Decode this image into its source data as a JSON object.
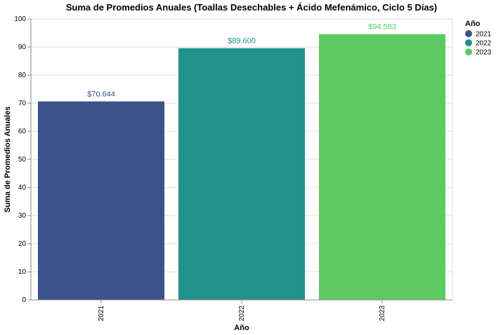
{
  "chart_data": {
    "type": "bar",
    "title": "Suma de Promedios Anuales (Toallas Desechables + Ácido Mefenámico, Ciclo 5 Días)",
    "xlabel": "Año",
    "ylabel": "Suma de Promedios Anuales",
    "categories": [
      "2021",
      "2022",
      "2023"
    ],
    "values": [
      70.644,
      89.6,
      94.583
    ],
    "data_labels": [
      "$70.644",
      "$89.600",
      "$94.583"
    ],
    "colors": [
      "#3b528b",
      "#21918c",
      "#5ec962"
    ],
    "ylim": [
      0,
      100
    ],
    "yticks": [
      0,
      10,
      20,
      30,
      40,
      50,
      60,
      70,
      80,
      90,
      100
    ],
    "grid": true,
    "legend": {
      "title": "Año",
      "placement": "top-right",
      "entries": [
        "2021",
        "2022",
        "2023"
      ]
    }
  }
}
